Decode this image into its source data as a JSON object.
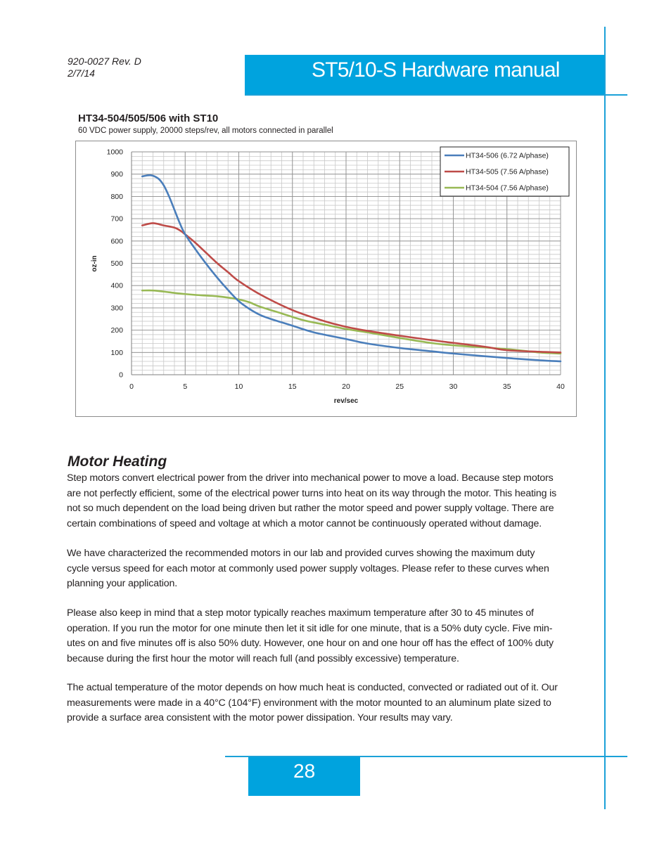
{
  "header": {
    "doc_number": "920-0027 Rev. D",
    "doc_date": "2/7/14",
    "title": "ST5/10-S Hardware manual"
  },
  "chart_heading": "HT34-504/505/506 with ST10",
  "chart_subheading": "60 VDC power supply, 20000 steps/rev, all motors connected in parallel",
  "chart_data": {
    "type": "line",
    "title": "",
    "xlabel": "rev/sec",
    "ylabel": "oz-in",
    "xlim": [
      0,
      40
    ],
    "ylim": [
      0,
      1000
    ],
    "x_ticks": [
      0,
      5,
      10,
      15,
      20,
      25,
      30,
      35,
      40
    ],
    "y_ticks": [
      0,
      100,
      200,
      300,
      400,
      500,
      600,
      700,
      800,
      900,
      1000
    ],
    "grid": true,
    "legend_position": "top-right",
    "series": [
      {
        "name": "HT34-506 (6.72 A/phase)",
        "color": "#4a7ebb",
        "x": [
          1,
          1.8,
          2.5,
          3,
          3.5,
          4,
          4.5,
          5,
          6,
          7,
          8,
          9,
          10,
          11,
          12,
          13,
          14,
          15,
          17,
          20,
          22,
          25,
          28,
          30,
          35,
          38,
          40
        ],
        "y": [
          890,
          895,
          880,
          850,
          800,
          740,
          680,
          630,
          560,
          495,
          435,
          380,
          330,
          295,
          268,
          250,
          235,
          220,
          190,
          160,
          140,
          120,
          105,
          95,
          75,
          65,
          60
        ]
      },
      {
        "name": "HT34-505 (7.56 A/phase)",
        "color": "#be4b48",
        "x": [
          1,
          2,
          3,
          4,
          4.5,
          5,
          6,
          7,
          8,
          9,
          10,
          12,
          15,
          18,
          20,
          22,
          25,
          28,
          30,
          33,
          35,
          38,
          40
        ],
        "y": [
          670,
          680,
          670,
          660,
          648,
          630,
          590,
          545,
          500,
          460,
          420,
          360,
          290,
          240,
          215,
          197,
          175,
          155,
          143,
          125,
          110,
          103,
          100
        ]
      },
      {
        "name": "HT34-504 (7.56 A/phase)",
        "color": "#98b954",
        "x": [
          1,
          2,
          3,
          4,
          5,
          6,
          7,
          8,
          9,
          10,
          11,
          12,
          14,
          16,
          18,
          20,
          22,
          25,
          28,
          30,
          35,
          38,
          40
        ],
        "y": [
          378,
          378,
          373,
          367,
          362,
          358,
          355,
          352,
          346,
          338,
          325,
          305,
          275,
          245,
          225,
          205,
          190,
          165,
          142,
          132,
          115,
          100,
          95
        ]
      }
    ]
  },
  "section": {
    "heading": "Motor Heating",
    "para1_lines": [
      "Step motors convert electrical power from the driver into mechanical power to move a load. Because step motors",
      "are not perfectly efficient, some of the electrical power turns into heat on its way through the motor. This heating is",
      "not so much dependent on the load being driven but rather the motor speed and power supply voltage. There are",
      "certain combinations of speed and voltage at which a motor cannot be continuously operated without damage."
    ],
    "para2_lines": [
      "We have characterized the recommended motors in our lab and provided curves showing the maximum duty",
      "cycle versus speed for each motor at commonly used power supply voltages. Please refer to these curves when",
      "planning your application."
    ],
    "para3_lines": [
      "Please also keep in mind that a step motor typically reaches maximum temperature after 30 to 45 minutes of",
      "operation. If you run the motor for one minute then let it sit idle for one minute, that is a 50% duty cycle. Five min-",
      "utes on and five minutes off is also 50% duty. However, one hour on and one hour off has the effect of 100% duty",
      "because during the first hour the motor will reach full (and possibly excessive) temperature."
    ],
    "para4_lines": [
      "The actual temperature of the motor depends on how much heat is conducted, convected or radiated out of it. Our",
      "measurements were made in a 40°C (104°F) environment with the motor mounted to an aluminum plate sized to",
      "provide a surface area consistent with the motor power dissipation. Your results may vary."
    ]
  },
  "footer": {
    "page_number": "28"
  }
}
